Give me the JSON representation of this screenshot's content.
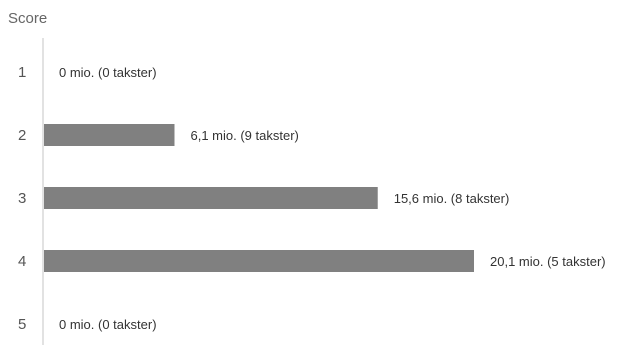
{
  "chart_data": {
    "type": "bar",
    "orientation": "horizontal",
    "ylabel": "Score",
    "categories": [
      "1",
      "2",
      "3",
      "4",
      "5"
    ],
    "values": [
      0,
      6.1,
      15.6,
      20.1,
      0
    ],
    "data_labels": [
      "0 mio. (0 takster)",
      "6,1 mio. (9 takster)",
      "15,6 mio. (8 takster)",
      "20,1 mio. (5 takster)",
      "0 mio. (0 takster)"
    ],
    "xlim": [
      0,
      20.1
    ],
    "grid": false,
    "legend": "none",
    "bar_color": "#808080",
    "axis_color": "#d9d9d9"
  }
}
